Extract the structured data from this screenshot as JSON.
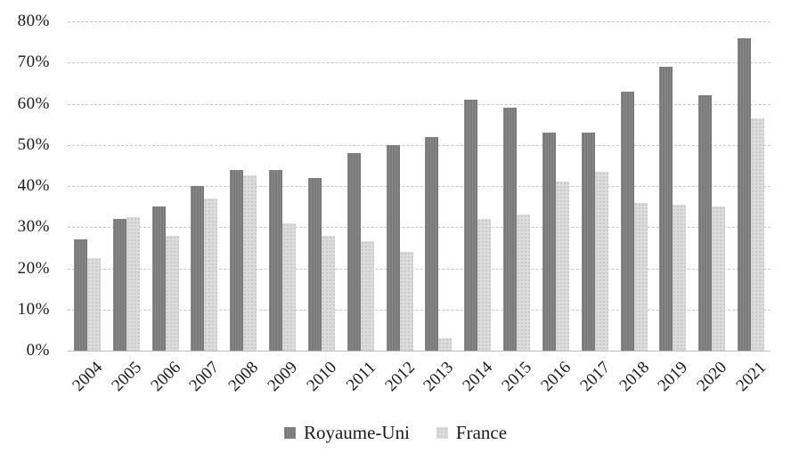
{
  "chart_data": {
    "type": "bar",
    "title": "",
    "xlabel": "",
    "ylabel": "",
    "categories": [
      "2004",
      "2005",
      "2006",
      "2007",
      "2008",
      "2009",
      "2010",
      "2011",
      "2012",
      "2013",
      "2014",
      "2015",
      "2016",
      "2017",
      "2018",
      "2019",
      "2020",
      "2021"
    ],
    "series": [
      {
        "name": "Royaume-Uni",
        "color": "#7f7f7f",
        "values": [
          27,
          32,
          35,
          40,
          44,
          44,
          42,
          48,
          50,
          52,
          61,
          59,
          53,
          53,
          63,
          69,
          62,
          76
        ]
      },
      {
        "name": "France",
        "color": "#dcdcdc",
        "values": [
          22.5,
          32.5,
          28,
          37,
          42.5,
          31,
          28,
          26.5,
          24,
          3,
          32,
          33,
          41,
          43.5,
          36,
          35.5,
          35,
          56.5
        ]
      }
    ],
    "ylim": [
      0,
      80
    ],
    "ytick_step": 10,
    "ytick_labels": [
      "0%",
      "10%",
      "20%",
      "30%",
      "40%",
      "50%",
      "60%",
      "70%",
      "80%"
    ],
    "grid": true,
    "legend_position": "bottom",
    "value_unit": "percent"
  },
  "legend": {
    "items": [
      {
        "label": "Royaume-Uni",
        "color": "#7f7f7f"
      },
      {
        "label": "France",
        "color": "#dcdcdc"
      }
    ]
  }
}
